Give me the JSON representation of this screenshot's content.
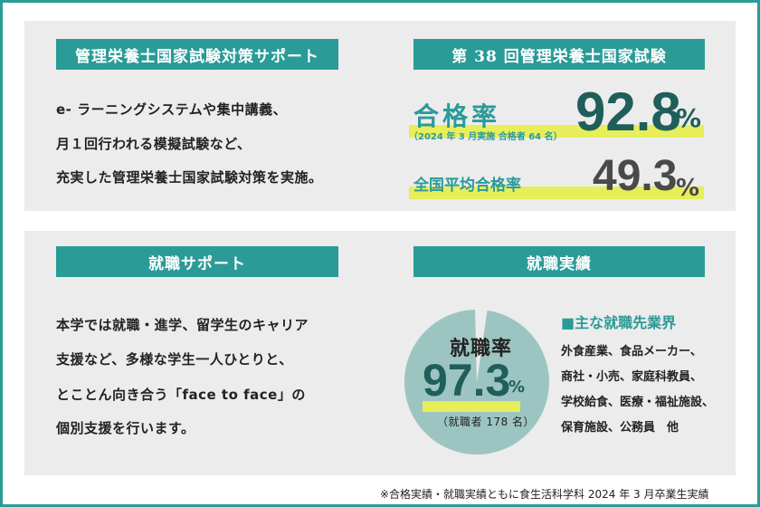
{
  "exam_support": {
    "label": "管理栄養士国家試験対策サポート",
    "lines": [
      "e- ラーニングシステムや集中講義、",
      "月１回行われる模擬試験など、",
      "充実した管理栄養士国家試験対策を実施。"
    ]
  },
  "exam_result": {
    "label": "第 38 回管理栄養士国家試験",
    "pass_rate_label": "合格率",
    "pass_rate_note": "（2024 年 3 月実施  合格者 64 名）",
    "pass_rate_value": "92.8",
    "pass_rate_unit": "%",
    "national_label": "全国平均合格率",
    "national_value": "49.3",
    "national_unit": "%"
  },
  "job_support": {
    "label": "就職サポート",
    "lines": [
      "本学では就職・進学、留学生のキャリア",
      "支援など、多様な学生一人ひとりと、",
      "とことん向き合う「face to face」の",
      "個別支援を行います。"
    ]
  },
  "job_result": {
    "label": "就職実績",
    "rate_label": "就職率",
    "rate_value": "97.3",
    "rate_unit": "%",
    "rate_note": "（就職者 178 名）",
    "rate_fraction": 0.973,
    "industries_title": "■主な就職先業界",
    "industries": [
      "外食産業、食品メーカー、",
      "商社・小売、家庭科教員、",
      "学校給食、医療・福祉施設、",
      "保育施設、公務員　他"
    ]
  },
  "footnote": "※合格実績・就職実績ともに食生活科学科 2024 年 3 月卒業生実績",
  "colors": {
    "teal": "#2a9b97",
    "panel": "#ececec",
    "highlight": "#e6ee5a",
    "pie_fill": "#9cc5c2",
    "dark_num": "#1f5e5a",
    "gray_num": "#4a4a4a"
  }
}
